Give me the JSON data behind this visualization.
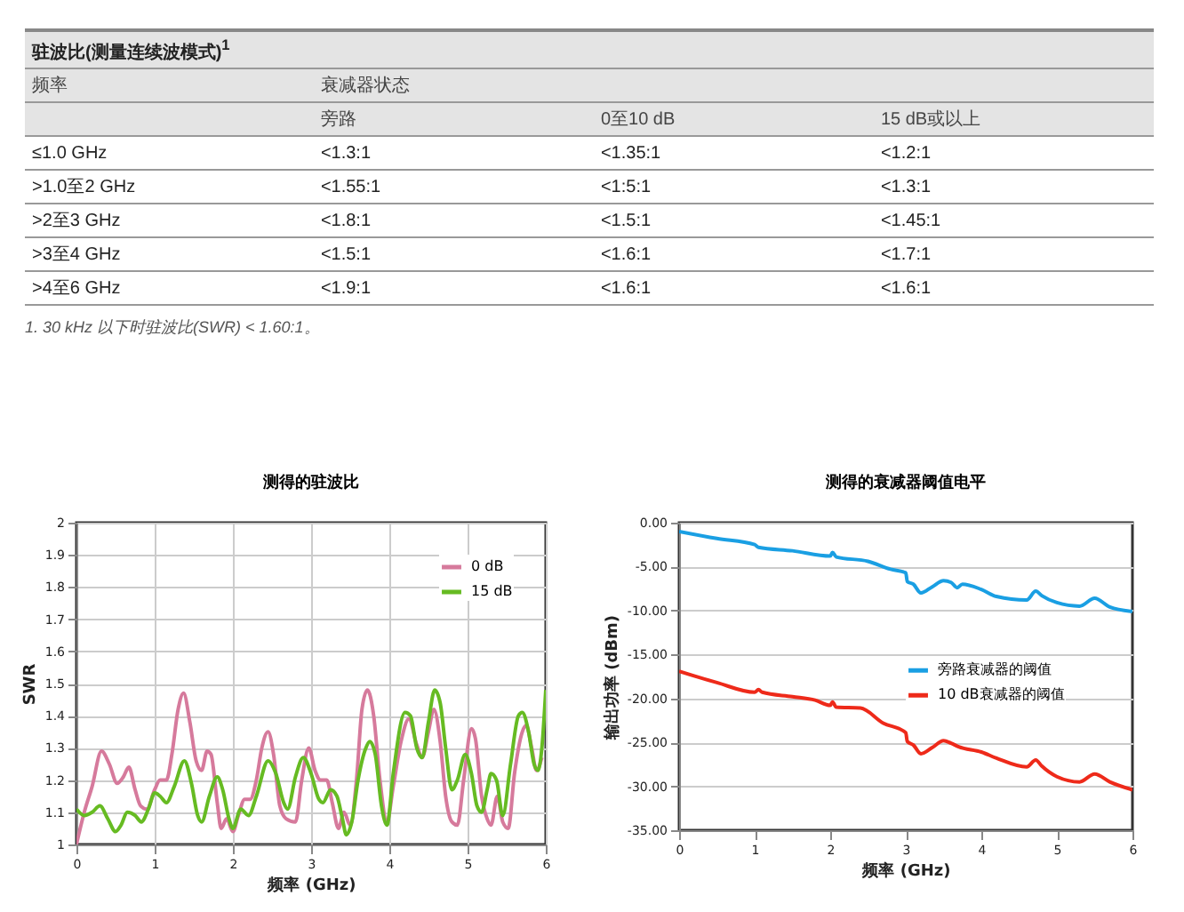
{
  "chart_data": [
    {
      "type": "other",
      "title": "驻波比(测量连续波模式)$^{1}$",
      "ylabel": "频率",
      "xlabel": "衰减器状态",
      "categories": [
        "旁路",
        "0至10 dB",
        "15 dB或以上"
      ],
      "y_categories": [
        "≤1.0 GHz",
        ">1.0至2 GHz",
        ">2至3 GHz",
        ">3至4 GHz",
        ">4至6 GHz"
      ],
      "cell_labels": [
        [
          "<1.3:1",
          "<1.35:1",
          "<1.2:1"
        ],
        [
          "<1.55:1",
          "<1:5:1",
          "<1.3:1"
        ],
        [
          "<1.8:1",
          "<1.5:1",
          "<1.45:1"
        ],
        [
          "<1.5:1",
          "<1.6:1",
          "<1.7:1"
        ],
        [
          "<1.9:1",
          "<1.6:1",
          "<1.6:1"
        ]
      ],
      "annotations": [
        "1. 30 kHz 以下时驻波比(SWR) < 1.60:1。"
      ]
    },
    {
      "type": "line",
      "title": "测得的驻波比",
      "xlabel": "频率 (GHz)",
      "ylabel": "SWR",
      "xlim": [
        0,
        6
      ],
      "xticks": [
        0,
        1,
        2,
        3,
        4,
        5,
        6
      ],
      "ylim": [
        1,
        2
      ],
      "yticks": [
        1,
        1.1,
        1.2,
        1.3,
        1.4,
        1.5,
        1.6,
        1.7,
        1.8,
        1.9,
        2
      ],
      "grid": true,
      "legend": "top right",
      "marker": "none",
      "line_style": "solid",
      "series": [
        {
          "name": "0 dB",
          "color": "#d67a9c",
          "x": [
            0,
            0.1,
            0.2,
            0.32,
            0.42,
            0.52,
            0.6,
            0.67,
            0.75,
            0.82,
            0.9,
            1.0,
            1.07,
            1.15,
            1.22,
            1.3,
            1.37,
            1.45,
            1.53,
            1.6,
            1.67,
            1.72,
            1.8,
            1.85,
            1.92,
            2.0,
            2.07,
            2.15,
            2.22,
            2.3,
            2.37,
            2.45,
            2.52,
            2.6,
            2.68,
            2.8,
            2.88,
            2.97,
            3.05,
            3.12,
            3.2,
            3.27,
            3.35,
            3.42,
            3.5,
            3.58,
            3.65,
            3.72,
            3.8,
            3.88,
            3.97,
            4.05,
            4.15,
            4.25,
            4.35,
            4.42,
            4.5,
            4.57,
            4.65,
            4.72,
            4.8,
            4.87,
            4.95,
            5.05,
            5.1,
            5.18,
            5.25,
            5.3,
            5.38,
            5.45,
            5.52,
            5.6,
            5.7,
            5.75,
            5.82,
            5.88,
            5.95
          ],
          "values": [
            1.0,
            1.1,
            1.18,
            1.29,
            1.25,
            1.19,
            1.21,
            1.24,
            1.17,
            1.12,
            1.11,
            1.17,
            1.2,
            1.2,
            1.28,
            1.42,
            1.47,
            1.38,
            1.26,
            1.23,
            1.29,
            1.28,
            1.13,
            1.05,
            1.08,
            1.04,
            1.09,
            1.14,
            1.14,
            1.2,
            1.3,
            1.35,
            1.28,
            1.12,
            1.08,
            1.07,
            1.2,
            1.3,
            1.23,
            1.2,
            1.2,
            1.13,
            1.05,
            1.1,
            1.06,
            1.2,
            1.42,
            1.48,
            1.4,
            1.2,
            1.07,
            1.18,
            1.32,
            1.39,
            1.31,
            1.27,
            1.35,
            1.42,
            1.32,
            1.15,
            1.07,
            1.06,
            1.2,
            1.36,
            1.33,
            1.15,
            1.08,
            1.06,
            1.15,
            1.07,
            1.05,
            1.22,
            1.35,
            1.37,
            1.3,
            1.23,
            1.27
          ]
        },
        {
          "name": "15 dB",
          "color": "#66bb22",
          "x": [
            0,
            0.1,
            0.2,
            0.3,
            0.4,
            0.5,
            0.57,
            0.65,
            0.75,
            0.83,
            0.92,
            1.0,
            1.07,
            1.15,
            1.25,
            1.38,
            1.47,
            1.55,
            1.6,
            1.7,
            1.8,
            1.87,
            1.95,
            2.0,
            2.1,
            2.2,
            2.3,
            2.45,
            2.55,
            2.65,
            2.7,
            2.8,
            2.9,
            3.0,
            3.1,
            3.15,
            3.25,
            3.33,
            3.4,
            3.45,
            3.52,
            3.6,
            3.7,
            3.75,
            3.82,
            3.9,
            3.97,
            4.05,
            4.2,
            4.27,
            4.35,
            4.42,
            4.5,
            4.58,
            4.65,
            4.72,
            4.8,
            4.87,
            4.97,
            5.05,
            5.12,
            5.18,
            5.25,
            5.3,
            5.37,
            5.45,
            5.55,
            5.65,
            5.7,
            5.78,
            5.85,
            5.9,
            5.95,
            6.0
          ],
          "values": [
            1.11,
            1.09,
            1.1,
            1.12,
            1.08,
            1.04,
            1.06,
            1.1,
            1.09,
            1.07,
            1.11,
            1.16,
            1.15,
            1.13,
            1.18,
            1.26,
            1.19,
            1.09,
            1.07,
            1.15,
            1.21,
            1.17,
            1.08,
            1.05,
            1.11,
            1.09,
            1.15,
            1.26,
            1.22,
            1.13,
            1.11,
            1.21,
            1.27,
            1.22,
            1.14,
            1.13,
            1.17,
            1.15,
            1.08,
            1.03,
            1.07,
            1.2,
            1.3,
            1.32,
            1.28,
            1.12,
            1.06,
            1.22,
            1.41,
            1.4,
            1.3,
            1.27,
            1.38,
            1.48,
            1.44,
            1.3,
            1.17,
            1.2,
            1.28,
            1.22,
            1.12,
            1.1,
            1.17,
            1.22,
            1.2,
            1.09,
            1.25,
            1.4,
            1.41,
            1.35,
            1.25,
            1.23,
            1.3,
            1.48
          ]
        }
      ]
    },
    {
      "type": "line",
      "title": "测得的衰减器阈值电平",
      "xlabel": "频率 (GHz)",
      "ylabel": "输出功率 (dBm)",
      "xlim": [
        0,
        6
      ],
      "xticks": [
        0,
        1,
        2,
        3,
        4,
        5,
        6
      ],
      "ylim": [
        -35,
        0
      ],
      "yticks": [
        {
          "value": 0,
          "label": "0.00"
        },
        {
          "value": -5,
          "label": "-5.00"
        },
        {
          "value": -10,
          "label": "-10.00"
        },
        {
          "value": -15,
          "label": "-15.00"
        },
        {
          "value": -20,
          "label": "-20.00"
        },
        {
          "value": -25,
          "label": "-25.00"
        },
        {
          "value": -30,
          "label": "-30.00"
        },
        {
          "value": -35,
          "label": "-35.00"
        }
      ],
      "grid": "y",
      "legend": "right",
      "marker": "none",
      "line_style": "solid",
      "series": [
        {
          "name": "旁路衰减器的阈值",
          "color": "#1a9fe3",
          "x": [
            0,
            0.5,
            1.0,
            1.05,
            1.5,
            2.0,
            2.03,
            2.08,
            2.5,
            2.8,
            3.0,
            3.02,
            3.1,
            3.2,
            3.35,
            3.5,
            3.6,
            3.68,
            3.75,
            4.0,
            4.2,
            4.6,
            4.72,
            4.8,
            5.0,
            5.3,
            5.5,
            5.7,
            6.0
          ],
          "values": [
            -1.0,
            -1.8,
            -2.5,
            -2.8,
            -3.2,
            -3.8,
            -3.4,
            -3.9,
            -4.4,
            -5.3,
            -5.7,
            -6.7,
            -7.0,
            -8.0,
            -7.3,
            -6.6,
            -6.8,
            -7.4,
            -7.0,
            -7.6,
            -8.4,
            -8.8,
            -7.8,
            -8.3,
            -9.1,
            -9.5,
            -8.6,
            -9.6,
            -10.1
          ]
        },
        {
          "name": "10 dB衰减器的阈值",
          "color": "#ee2a1a",
          "x": [
            0,
            0.5,
            1.0,
            1.05,
            1.1,
            1.5,
            1.8,
            2.0,
            2.03,
            2.08,
            2.4,
            2.7,
            3.0,
            3.02,
            3.1,
            3.2,
            3.35,
            3.5,
            3.6,
            3.7,
            4.0,
            4.2,
            4.6,
            4.72,
            4.8,
            5.0,
            5.3,
            5.5,
            5.7,
            6.0
          ],
          "values": [
            -16.9,
            -18.2,
            -19.3,
            -19.0,
            -19.3,
            -19.8,
            -20.2,
            -20.8,
            -20.4,
            -21.0,
            -21.1,
            -22.8,
            -23.9,
            -24.9,
            -25.3,
            -26.3,
            -25.6,
            -24.8,
            -25.1,
            -25.5,
            -26.1,
            -26.8,
            -27.8,
            -27.0,
            -27.7,
            -28.9,
            -29.5,
            -28.6,
            -29.5,
            -30.4
          ]
        }
      ]
    }
  ]
}
